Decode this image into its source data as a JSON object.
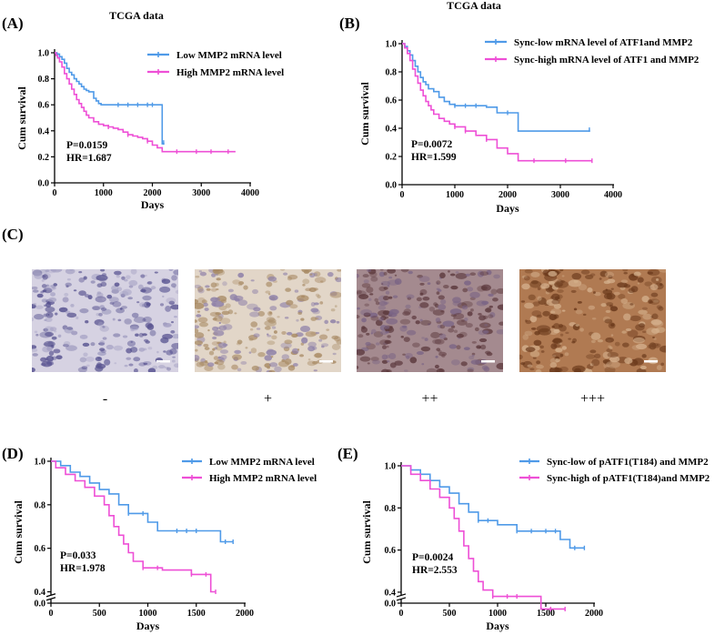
{
  "colors": {
    "low": "#4f9ae8",
    "high": "#ee4fd6",
    "axis": "#000000"
  },
  "ihc_panel": {
    "label": "(C)",
    "grades": [
      "-",
      "+",
      "++",
      "+++"
    ],
    "image_names": [
      "ihc-negative-image",
      "ihc-plus-image",
      "ihc-double-plus-image",
      "ihc-triple-plus-image"
    ],
    "stain_colors": [
      {
        "base": "#d6d2e2",
        "spot": "#56518f",
        "spot2": "#a39fc2"
      },
      {
        "base": "#e2d6c8",
        "spot": "#a88a64",
        "spot2": "#8d7fa8"
      },
      {
        "base": "#a48a8f",
        "spot": "#5d3a3e",
        "spot2": "#7a6485"
      },
      {
        "base": "#b07a52",
        "spot": "#6b3a1c",
        "spot2": "#d4b08c"
      }
    ]
  },
  "chart_data": [
    {
      "type": "line",
      "label": "(A)",
      "title": "TCGA data",
      "xlabel": "Days",
      "ylabel": "Cum survival",
      "xlim": [
        0,
        4000
      ],
      "ylim": [
        0,
        1.0
      ],
      "xticks": [
        0,
        1000,
        2000,
        3000,
        4000
      ],
      "yticks": [
        0.0,
        0.2,
        0.4,
        0.6,
        0.8,
        1.0
      ],
      "stats": [
        "P=0.0159",
        "HR=1.687"
      ],
      "series": [
        {
          "name": "Low MMP2 mRNA level",
          "color": "low",
          "x": [
            0,
            50,
            100,
            150,
            200,
            250,
            300,
            350,
            400,
            450,
            500,
            550,
            600,
            650,
            700,
            750,
            800,
            850,
            900,
            950,
            1000,
            1100,
            1200,
            1300,
            1500,
            1700,
            1900,
            2150,
            2200,
            2230
          ],
          "y": [
            1.0,
            0.99,
            0.97,
            0.95,
            0.92,
            0.88,
            0.85,
            0.83,
            0.8,
            0.78,
            0.76,
            0.74,
            0.72,
            0.71,
            0.7,
            0.7,
            0.65,
            0.63,
            0.61,
            0.6,
            0.6,
            0.6,
            0.6,
            0.6,
            0.6,
            0.6,
            0.6,
            0.6,
            0.3,
            0.31
          ],
          "censor": [
            [
              1300,
              0.6
            ],
            [
              1500,
              0.6
            ],
            [
              1700,
              0.6
            ],
            [
              1900,
              0.6
            ],
            [
              2000,
              0.6
            ],
            [
              2230,
              0.31
            ]
          ]
        },
        {
          "name": "High MMP2 mRNA  level",
          "color": "high",
          "x": [
            0,
            30,
            60,
            100,
            150,
            200,
            250,
            300,
            350,
            400,
            450,
            500,
            550,
            600,
            650,
            700,
            800,
            900,
            1000,
            1100,
            1200,
            1300,
            1400,
            1500,
            1600,
            1700,
            1800,
            1900,
            2000,
            2100,
            2200,
            3700
          ],
          "y": [
            1.0,
            0.98,
            0.96,
            0.93,
            0.89,
            0.84,
            0.8,
            0.76,
            0.72,
            0.68,
            0.64,
            0.61,
            0.58,
            0.55,
            0.52,
            0.5,
            0.47,
            0.45,
            0.44,
            0.43,
            0.42,
            0.41,
            0.39,
            0.37,
            0.36,
            0.35,
            0.34,
            0.32,
            0.29,
            0.27,
            0.24,
            0.24
          ],
          "censor": [
            [
              1100,
              0.43
            ],
            [
              1500,
              0.37
            ],
            [
              1900,
              0.32
            ],
            [
              2500,
              0.24
            ],
            [
              2900,
              0.24
            ],
            [
              3200,
              0.24
            ],
            [
              3550,
              0.24
            ]
          ]
        }
      ]
    },
    {
      "type": "line",
      "label": "(B)",
      "title": "TCGA data",
      "xlabel": "Days",
      "ylabel": "Cum survival",
      "xlim": [
        0,
        4000
      ],
      "ylim": [
        0,
        1.0
      ],
      "xticks": [
        0,
        1000,
        2000,
        3000,
        4000
      ],
      "yticks": [
        0.0,
        0.2,
        0.4,
        0.6,
        0.8,
        1.0
      ],
      "stats": [
        "P=0.0072",
        "HR=1.599"
      ],
      "series": [
        {
          "name": "Sync-low mRNA level of ATF1and MMP2",
          "color": "low",
          "x": [
            0,
            50,
            100,
            150,
            200,
            250,
            300,
            350,
            400,
            450,
            500,
            600,
            700,
            800,
            900,
            1000,
            1200,
            1400,
            1600,
            1800,
            2000,
            2200,
            3550
          ],
          "y": [
            1.0,
            0.98,
            0.95,
            0.92,
            0.88,
            0.84,
            0.8,
            0.76,
            0.73,
            0.71,
            0.68,
            0.66,
            0.62,
            0.59,
            0.57,
            0.56,
            0.56,
            0.56,
            0.55,
            0.51,
            0.51,
            0.38,
            0.39
          ],
          "censor": [
            [
              1000,
              0.56
            ],
            [
              1200,
              0.56
            ],
            [
              1400,
              0.56
            ],
            [
              2000,
              0.51
            ],
            [
              3550,
              0.39
            ]
          ]
        },
        {
          "name": "Sync-high mRNA level of ATF1 and MMP2",
          "color": "high",
          "x": [
            0,
            50,
            100,
            150,
            200,
            250,
            300,
            350,
            400,
            450,
            500,
            550,
            600,
            700,
            800,
            900,
            1000,
            1200,
            1400,
            1600,
            1800,
            2000,
            2200,
            3600
          ],
          "y": [
            1.0,
            0.97,
            0.93,
            0.88,
            0.82,
            0.77,
            0.72,
            0.67,
            0.63,
            0.59,
            0.56,
            0.53,
            0.5,
            0.47,
            0.45,
            0.43,
            0.41,
            0.38,
            0.35,
            0.32,
            0.26,
            0.22,
            0.17,
            0.17
          ],
          "censor": [
            [
              1000,
              0.41
            ],
            [
              1200,
              0.38
            ],
            [
              1600,
              0.32
            ],
            [
              2500,
              0.17
            ],
            [
              3100,
              0.17
            ],
            [
              3600,
              0.17
            ]
          ]
        }
      ]
    },
    {
      "type": "line",
      "label": "(D)",
      "title": "",
      "xlabel": "Days",
      "ylabel": "Cum survival",
      "xlim": [
        0,
        2000
      ],
      "ylim": [
        0,
        1.0
      ],
      "xticks": [
        0,
        500,
        1000,
        1500,
        2000
      ],
      "yticks": [
        0.0,
        0.4,
        0.6,
        0.8,
        1.0
      ],
      "axis_break": true,
      "stats": [
        "P=0.033",
        "HR=1.978"
      ],
      "series": [
        {
          "name": "Low MMP2 mRNA level",
          "color": "low",
          "x": [
            0,
            100,
            200,
            300,
            400,
            500,
            600,
            700,
            800,
            900,
            1000,
            1100,
            1200,
            1500,
            1700,
            1750,
            1880
          ],
          "y": [
            1.0,
            0.98,
            0.95,
            0.93,
            0.9,
            0.87,
            0.85,
            0.8,
            0.76,
            0.76,
            0.72,
            0.68,
            0.68,
            0.68,
            0.68,
            0.63,
            0.63
          ],
          "censor": [
            [
              800,
              0.76
            ],
            [
              950,
              0.76
            ],
            [
              1300,
              0.68
            ],
            [
              1400,
              0.68
            ],
            [
              1500,
              0.68
            ],
            [
              1800,
              0.63
            ],
            [
              1880,
              0.63
            ]
          ]
        },
        {
          "name": "High MMP2 mRNA  level",
          "color": "high",
          "x": [
            0,
            50,
            150,
            250,
            350,
            450,
            550,
            600,
            650,
            700,
            750,
            800,
            850,
            950,
            1100,
            1150,
            1450,
            1600,
            1650,
            1700
          ],
          "y": [
            1.0,
            0.97,
            0.94,
            0.91,
            0.88,
            0.84,
            0.8,
            0.75,
            0.7,
            0.66,
            0.62,
            0.58,
            0.54,
            0.51,
            0.51,
            0.5,
            0.48,
            0.48,
            0.4,
            0.4
          ],
          "censor": [
            [
              950,
              0.51
            ],
            [
              1100,
              0.51
            ],
            [
              1450,
              0.48
            ],
            [
              1600,
              0.48
            ],
            [
              1700,
              0.4
            ]
          ]
        }
      ]
    },
    {
      "type": "line",
      "label": "(E)",
      "title": "",
      "xlabel": "Days",
      "ylabel": "Cum survival",
      "xlim": [
        0,
        2000
      ],
      "ylim": [
        0,
        1.0
      ],
      "xticks": [
        0,
        500,
        1000,
        1500,
        2000
      ],
      "yticks": [
        0.0,
        0.4,
        0.6,
        0.8,
        1.0
      ],
      "axis_break": true,
      "stats": [
        "P=0.0024",
        "HR=2.553"
      ],
      "series": [
        {
          "name": "Sync-low of pATF1(T184) and MMP2",
          "color": "low",
          "x": [
            0,
            100,
            200,
            300,
            400,
            500,
            600,
            700,
            800,
            900,
            1000,
            1200,
            1500,
            1650,
            1750,
            1900
          ],
          "y": [
            1.0,
            0.98,
            0.96,
            0.93,
            0.9,
            0.87,
            0.82,
            0.78,
            0.74,
            0.74,
            0.72,
            0.69,
            0.69,
            0.65,
            0.61,
            0.61
          ],
          "censor": [
            [
              800,
              0.74
            ],
            [
              900,
              0.74
            ],
            [
              1200,
              0.69
            ],
            [
              1350,
              0.69
            ],
            [
              1500,
              0.69
            ],
            [
              1600,
              0.69
            ],
            [
              1800,
              0.61
            ],
            [
              1900,
              0.61
            ]
          ]
        },
        {
          "name": "Sync-high of pATF1(T184)and MMP2",
          "color": "high",
          "x": [
            0,
            100,
            200,
            300,
            400,
            500,
            550,
            600,
            650,
            700,
            750,
            800,
            850,
            950,
            1100,
            1400,
            1450,
            1700
          ],
          "y": [
            1.0,
            0.96,
            0.93,
            0.89,
            0.85,
            0.8,
            0.75,
            0.69,
            0.62,
            0.56,
            0.5,
            0.45,
            0.41,
            0.38,
            0.38,
            0.38,
            0.32,
            0.32
          ],
          "censor": [
            [
              950,
              0.38
            ],
            [
              1100,
              0.38
            ],
            [
              1200,
              0.38
            ],
            [
              1550,
              0.32
            ],
            [
              1700,
              0.32
            ]
          ]
        }
      ]
    }
  ]
}
